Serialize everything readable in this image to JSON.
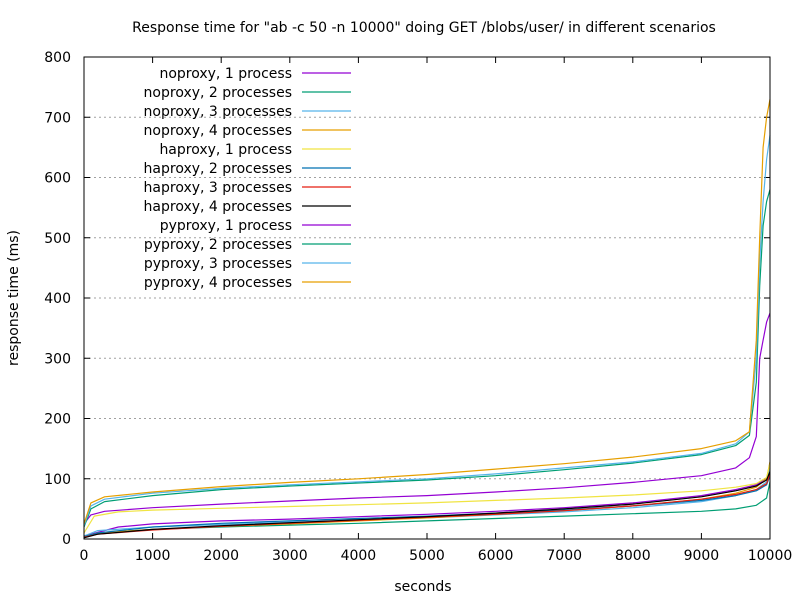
{
  "chart_data": {
    "type": "line",
    "title": "Response time for \"ab -c 50 -n 10000\" doing GET /blobs/user/ in different scenarios",
    "xlabel": "seconds",
    "ylabel": "response time (ms)",
    "xlim": [
      0,
      10000
    ],
    "ylim": [
      0,
      800
    ],
    "xticks": [
      0,
      1000,
      2000,
      3000,
      4000,
      5000,
      6000,
      7000,
      8000,
      9000,
      10000
    ],
    "yticks": [
      0,
      100,
      200,
      300,
      400,
      500,
      600,
      700,
      800
    ],
    "grid": "horizontal-dotted",
    "legend_position": "top-left",
    "series": [
      {
        "name": "noproxy, 1 process",
        "color": "#9400d3",
        "points": [
          [
            0,
            5
          ],
          [
            500,
            20
          ],
          [
            1000,
            25
          ],
          [
            2000,
            30
          ],
          [
            3000,
            33
          ],
          [
            4000,
            37
          ],
          [
            5000,
            41
          ],
          [
            6000,
            46
          ],
          [
            7000,
            52
          ],
          [
            8000,
            60
          ],
          [
            9000,
            72
          ],
          [
            9500,
            82
          ],
          [
            9800,
            90
          ],
          [
            9950,
            100
          ],
          [
            10000,
            110
          ]
        ]
      },
      {
        "name": "noproxy, 2 processes",
        "color": "#009e73",
        "points": [
          [
            0,
            3
          ],
          [
            200,
            10
          ],
          [
            1000,
            16
          ],
          [
            2000,
            20
          ],
          [
            3000,
            23
          ],
          [
            4000,
            26
          ],
          [
            5000,
            30
          ],
          [
            6000,
            34
          ],
          [
            7000,
            38
          ],
          [
            8000,
            42
          ],
          [
            9000,
            46
          ],
          [
            9500,
            50
          ],
          [
            9800,
            56
          ],
          [
            9950,
            68
          ],
          [
            10000,
            95
          ]
        ]
      },
      {
        "name": "noproxy, 3 processes",
        "color": "#56b4e9",
        "points": [
          [
            0,
            5
          ],
          [
            200,
            14
          ],
          [
            1000,
            20
          ],
          [
            2000,
            24
          ],
          [
            3000,
            28
          ],
          [
            4000,
            31
          ],
          [
            5000,
            35
          ],
          [
            6000,
            40
          ],
          [
            7000,
            45
          ],
          [
            8000,
            52
          ],
          [
            9000,
            62
          ],
          [
            9500,
            72
          ],
          [
            9800,
            82
          ],
          [
            9950,
            95
          ],
          [
            10000,
            118
          ]
        ]
      },
      {
        "name": "noproxy, 4 processes",
        "color": "#e69f00",
        "points": [
          [
            0,
            4
          ],
          [
            200,
            10
          ],
          [
            1000,
            16
          ],
          [
            2000,
            21
          ],
          [
            3000,
            25
          ],
          [
            4000,
            30
          ],
          [
            5000,
            35
          ],
          [
            6000,
            41
          ],
          [
            7000,
            47
          ],
          [
            8000,
            55
          ],
          [
            9000,
            66
          ],
          [
            9500,
            76
          ],
          [
            9800,
            86
          ],
          [
            9950,
            100
          ],
          [
            10000,
            128
          ]
        ]
      },
      {
        "name": "haproxy, 1 process",
        "color": "#f0e442",
        "points": [
          [
            0,
            10
          ],
          [
            150,
            38
          ],
          [
            500,
            45
          ],
          [
            1000,
            48
          ],
          [
            2000,
            51
          ],
          [
            3000,
            54
          ],
          [
            4000,
            57
          ],
          [
            5000,
            60
          ],
          [
            6000,
            64
          ],
          [
            7000,
            68
          ],
          [
            8000,
            73
          ],
          [
            9000,
            80
          ],
          [
            9500,
            86
          ],
          [
            9800,
            92
          ],
          [
            9950,
            102
          ],
          [
            10000,
            125
          ]
        ]
      },
      {
        "name": "haproxy, 2 processes",
        "color": "#0072b2",
        "points": [
          [
            0,
            4
          ],
          [
            200,
            10
          ],
          [
            1000,
            20
          ],
          [
            2000,
            26
          ],
          [
            3000,
            30
          ],
          [
            4000,
            34
          ],
          [
            5000,
            38
          ],
          [
            6000,
            43
          ],
          [
            7000,
            48
          ],
          [
            8000,
            55
          ],
          [
            9000,
            64
          ],
          [
            9500,
            72
          ],
          [
            9800,
            80
          ],
          [
            9950,
            90
          ],
          [
            10000,
            105
          ]
        ]
      },
      {
        "name": "haproxy, 3 processes",
        "color": "#e51e10",
        "points": [
          [
            0,
            3
          ],
          [
            200,
            8
          ],
          [
            1000,
            15
          ],
          [
            2000,
            21
          ],
          [
            3000,
            26
          ],
          [
            4000,
            31
          ],
          [
            5000,
            36
          ],
          [
            6000,
            41
          ],
          [
            7000,
            47
          ],
          [
            8000,
            55
          ],
          [
            9000,
            66
          ],
          [
            9500,
            74
          ],
          [
            9800,
            82
          ],
          [
            9950,
            92
          ],
          [
            10000,
            108
          ]
        ]
      },
      {
        "name": "haproxy, 4 processes",
        "color": "#000000",
        "points": [
          [
            0,
            2
          ],
          [
            200,
            8
          ],
          [
            1000,
            16
          ],
          [
            2000,
            22
          ],
          [
            3000,
            27
          ],
          [
            4000,
            32
          ],
          [
            5000,
            37
          ],
          [
            6000,
            43
          ],
          [
            7000,
            50
          ],
          [
            8000,
            58
          ],
          [
            9000,
            70
          ],
          [
            9500,
            80
          ],
          [
            9800,
            88
          ],
          [
            9950,
            98
          ],
          [
            10000,
            112
          ]
        ]
      },
      {
        "name": "pyproxy, 1 process",
        "color": "#9400d3",
        "points": [
          [
            0,
            25
          ],
          [
            100,
            40
          ],
          [
            300,
            46
          ],
          [
            1000,
            52
          ],
          [
            2000,
            58
          ],
          [
            3000,
            63
          ],
          [
            4000,
            68
          ],
          [
            5000,
            72
          ],
          [
            6000,
            78
          ],
          [
            7000,
            85
          ],
          [
            8000,
            94
          ],
          [
            9000,
            105
          ],
          [
            9500,
            118
          ],
          [
            9700,
            135
          ],
          [
            9800,
            170
          ],
          [
            9850,
            300
          ],
          [
            9900,
            330
          ],
          [
            9950,
            360
          ],
          [
            10000,
            375
          ]
        ]
      },
      {
        "name": "pyproxy, 2 processes",
        "color": "#009e73",
        "points": [
          [
            0,
            20
          ],
          [
            100,
            50
          ],
          [
            300,
            62
          ],
          [
            1000,
            72
          ],
          [
            2000,
            82
          ],
          [
            3000,
            88
          ],
          [
            4000,
            93
          ],
          [
            5000,
            98
          ],
          [
            6000,
            105
          ],
          [
            7000,
            115
          ],
          [
            8000,
            126
          ],
          [
            9000,
            140
          ],
          [
            9500,
            155
          ],
          [
            9700,
            172
          ],
          [
            9800,
            260
          ],
          [
            9850,
            420
          ],
          [
            9900,
            520
          ],
          [
            9950,
            560
          ],
          [
            10000,
            580
          ]
        ]
      },
      {
        "name": "pyproxy, 3 processes",
        "color": "#56b4e9",
        "points": [
          [
            0,
            22
          ],
          [
            100,
            55
          ],
          [
            300,
            66
          ],
          [
            1000,
            76
          ],
          [
            2000,
            84
          ],
          [
            3000,
            90
          ],
          [
            4000,
            95
          ],
          [
            5000,
            100
          ],
          [
            6000,
            108
          ],
          [
            7000,
            118
          ],
          [
            8000,
            128
          ],
          [
            9000,
            142
          ],
          [
            9500,
            158
          ],
          [
            9700,
            178
          ],
          [
            9800,
            300
          ],
          [
            9850,
            460
          ],
          [
            9900,
            560
          ],
          [
            9950,
            630
          ],
          [
            10000,
            670
          ]
        ]
      },
      {
        "name": "pyproxy, 4 processes",
        "color": "#e69f00",
        "points": [
          [
            0,
            25
          ],
          [
            100,
            60
          ],
          [
            300,
            70
          ],
          [
            1000,
            78
          ],
          [
            2000,
            87
          ],
          [
            3000,
            94
          ],
          [
            4000,
            100
          ],
          [
            5000,
            107
          ],
          [
            6000,
            116
          ],
          [
            7000,
            125
          ],
          [
            8000,
            136
          ],
          [
            9000,
            150
          ],
          [
            9500,
            163
          ],
          [
            9700,
            178
          ],
          [
            9800,
            330
          ],
          [
            9850,
            500
          ],
          [
            9900,
            650
          ],
          [
            9950,
            700
          ],
          [
            10000,
            730
          ]
        ]
      }
    ]
  }
}
